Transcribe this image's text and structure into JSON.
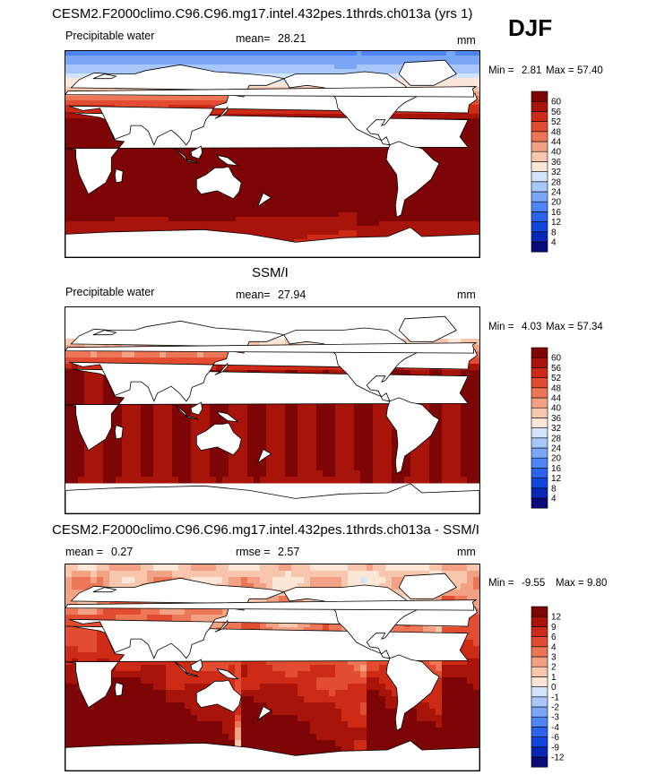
{
  "season": "DJF",
  "panels": [
    {
      "id": "model",
      "title": "CESM2.F2000climo.C96.C96.mg17.intel.432pes.1thrds.ch013a (yrs 1)",
      "left_label": "Precipitable water",
      "mean_label": "mean=",
      "mean_value": "28.21",
      "units": "mm",
      "min_label": "Min =",
      "min_value": "2.81",
      "max_label": "Max =",
      "max_value": "57.40"
    },
    {
      "id": "obs",
      "title": "SSM/I",
      "left_label": "Precipitable water",
      "mean_label": "mean=",
      "mean_value": "27.94",
      "units": "mm",
      "min_label": "Min =",
      "min_value": "4.03",
      "max_label": "Max =",
      "max_value": "57.34"
    },
    {
      "id": "diff",
      "title": "CESM2.F2000climo.C96.C96.mg17.intel.432pes.1thrds.ch013a - SSM/I",
      "mean_label": "mean =",
      "mean_value": "0.27",
      "rmse_label": "rmse =",
      "rmse_value": "2.57",
      "units": "mm",
      "min_label": "Min =",
      "min_value": "-9.55",
      "max_label": "Max =",
      "max_value": "9.80"
    }
  ],
  "chart_data": [
    {
      "type": "heatmap",
      "title": "Precipitable water (model, DJF)",
      "units": "mm",
      "mean": 28.21,
      "min": 2.81,
      "max": 57.4,
      "colorbar_levels": [
        4,
        8,
        12,
        16,
        20,
        24,
        28,
        32,
        36,
        40,
        44,
        48,
        52,
        56,
        60
      ],
      "colorbar_colors": [
        "#0a0a78",
        "#0b26b4",
        "#1145dc",
        "#2a63ee",
        "#4f84f4",
        "#7aa6f7",
        "#a7c6fa",
        "#d3e3fc",
        "#fbe6d8",
        "#f7c6ac",
        "#f2a182",
        "#ec7656",
        "#e24d31",
        "#cd2b16",
        "#a8130a",
        "#7e0505"
      ]
    },
    {
      "type": "heatmap",
      "title": "Precipitable water (SSM/I, DJF)",
      "units": "mm",
      "mean": 27.94,
      "min": 4.03,
      "max": 57.34,
      "colorbar_levels": [
        4,
        8,
        12,
        16,
        20,
        24,
        28,
        32,
        36,
        40,
        44,
        48,
        52,
        56,
        60
      ],
      "colorbar_colors": [
        "#0a0a78",
        "#0b26b4",
        "#1145dc",
        "#2a63ee",
        "#4f84f4",
        "#7aa6f7",
        "#a7c6fa",
        "#d3e3fc",
        "#fbe6d8",
        "#f7c6ac",
        "#f2a182",
        "#ec7656",
        "#e24d31",
        "#cd2b16",
        "#a8130a",
        "#7e0505"
      ]
    },
    {
      "type": "heatmap",
      "title": "Model - SSM/I difference",
      "units": "mm",
      "mean": 0.27,
      "rmse": 2.57,
      "min": -9.55,
      "max": 9.8,
      "colorbar_levels": [
        -12,
        -9,
        -6,
        -4,
        -3,
        -2,
        -1,
        0,
        1,
        2,
        3,
        4,
        6,
        9,
        12
      ],
      "colorbar_colors": [
        "#0a0a78",
        "#0b26b4",
        "#1145dc",
        "#2a63ee",
        "#4f84f4",
        "#7aa6f7",
        "#a7c6fa",
        "#d3e3fc",
        "#fbe6d8",
        "#f7c6ac",
        "#f2a182",
        "#ec7656",
        "#e24d31",
        "#cd2b16",
        "#a8130a",
        "#7e0505"
      ]
    }
  ]
}
